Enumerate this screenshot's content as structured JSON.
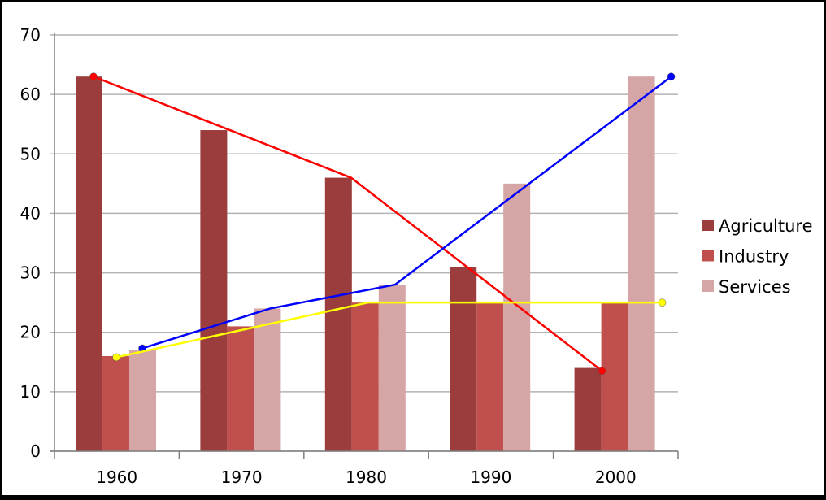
{
  "chart_data": {
    "type": "bar",
    "title": "",
    "xlabel": "",
    "ylabel": "",
    "categories": [
      "1960",
      "1970",
      "1980",
      "1990",
      "2000"
    ],
    "ylim": [
      0,
      70
    ],
    "yticks": [
      "0",
      "10",
      "20",
      "30",
      "40",
      "50",
      "60",
      "70"
    ],
    "grid": true,
    "legend_position": "right",
    "series": [
      {
        "name": "Agriculture",
        "values": [
          63,
          54,
          46,
          31,
          14
        ],
        "color": "#9b3d3d"
      },
      {
        "name": "Industry",
        "values": [
          16,
          21,
          25,
          25,
          25
        ],
        "color": "#c0504d"
      },
      {
        "name": "Services",
        "values": [
          17,
          24,
          28,
          45,
          63
        ],
        "color": "#d6a5a5"
      }
    ],
    "overlay_lines": [
      {
        "color": "#ff0000",
        "points": [
          {
            "x": "1960",
            "y": 63
          },
          {
            "x": "1980",
            "y": 46
          },
          {
            "x": "2000",
            "y": 13.5
          }
        ]
      },
      {
        "color": "#0000ff",
        "points": [
          {
            "x": "1960",
            "y": 17.3
          },
          {
            "x": "1970",
            "y": 24
          },
          {
            "x": "1980",
            "y": 28
          },
          {
            "x": "2000",
            "y": 63
          }
        ]
      },
      {
        "color": "#ffff00",
        "points": [
          {
            "x": "1960",
            "y": 15.8
          },
          {
            "x": "1980",
            "y": 25
          },
          {
            "x": "2000",
            "y": 25
          }
        ]
      }
    ]
  }
}
